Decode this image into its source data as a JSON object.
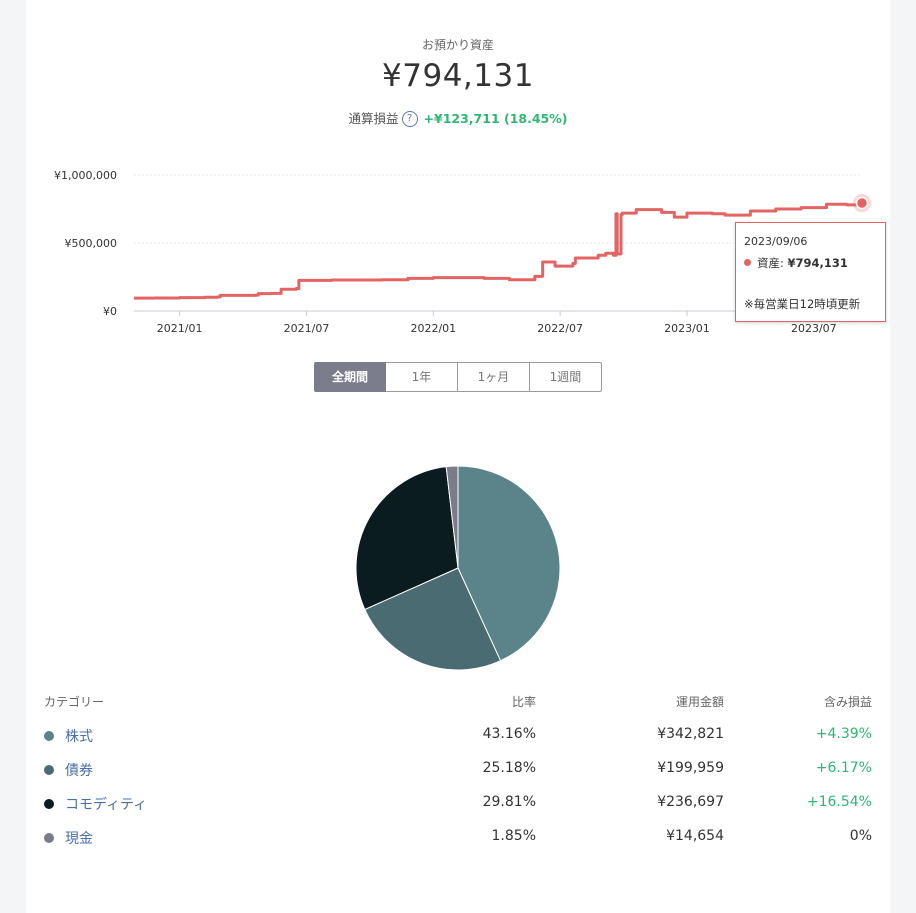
{
  "summary": {
    "assets_label": "お預かり資産",
    "assets_value": "¥794,131",
    "pl_label": "通算損益",
    "help_icon_text": "?",
    "pl_value": "+¥123,711 (18.45%)"
  },
  "tooltip": {
    "date": "2023/09/06",
    "series_label": "資産: ",
    "value": "¥794,131",
    "note": "※毎営業日12時頃更新"
  },
  "range_tabs": [
    "全期間",
    "1年",
    "1ヶ月",
    "1週間"
  ],
  "active_range": "全期間",
  "colors": {
    "line": "#e46464",
    "positive": "#2eb872",
    "stocks": "#5a8489",
    "bonds": "#4b6b72",
    "commodity": "#0b1c21",
    "cash": "#7b7c8a"
  },
  "chart_data": [
    {
      "type": "line",
      "title": "",
      "y_ticks": [
        "¥1,000,000",
        "¥500,000",
        "¥0"
      ],
      "y_tick_values": [
        1000000,
        500000,
        0
      ],
      "ylim": [
        0,
        1000000
      ],
      "x_ticks": [
        "2021/01",
        "2021/07",
        "2022/01",
        "2022/07",
        "2023/01",
        "2023/07"
      ],
      "x_tick_values": [
        2021.0,
        2021.5,
        2022.0,
        2022.5,
        2023.0,
        2023.5
      ],
      "xlim": [
        2020.82,
        2023.69
      ],
      "series": [
        {
          "name": "資産",
          "points": [
            [
              2020.82,
              95000
            ],
            [
              2020.9,
              96000
            ],
            [
              2021.0,
              98000
            ],
            [
              2021.1,
              101000
            ],
            [
              2021.15,
              104000
            ],
            [
              2021.16,
              115000
            ],
            [
              2021.3,
              117000
            ],
            [
              2021.31,
              128000
            ],
            [
              2021.36,
              130000
            ],
            [
              2021.4,
              160000
            ],
            [
              2021.46,
              165000
            ],
            [
              2021.47,
              225000
            ],
            [
              2021.6,
              228000
            ],
            [
              2021.8,
              230000
            ],
            [
              2021.9,
              240000
            ],
            [
              2022.0,
              245000
            ],
            [
              2022.2,
              240000
            ],
            [
              2022.3,
              230000
            ],
            [
              2022.4,
              255000
            ],
            [
              2022.43,
              258000
            ],
            [
              2022.431,
              360000
            ],
            [
              2022.48,
              330000
            ],
            [
              2022.55,
              350000
            ],
            [
              2022.56,
              390000
            ],
            [
              2022.65,
              410000
            ],
            [
              2022.68,
              425000
            ],
            [
              2022.71,
              410000
            ],
            [
              2022.72,
              715000
            ],
            [
              2022.725,
              420000
            ],
            [
              2022.735,
              420000
            ],
            [
              2022.74,
              710000
            ],
            [
              2022.745,
              720000
            ],
            [
              2022.8,
              745000
            ],
            [
              2022.9,
              725000
            ],
            [
              2022.95,
              690000
            ],
            [
              2023.0,
              720000
            ],
            [
              2023.1,
              715000
            ],
            [
              2023.15,
              705000
            ],
            [
              2023.25,
              735000
            ],
            [
              2023.35,
              750000
            ],
            [
              2023.45,
              760000
            ],
            [
              2023.55,
              785000
            ],
            [
              2023.63,
              780000
            ],
            [
              2023.69,
              794131
            ]
          ]
        }
      ]
    },
    {
      "type": "pie",
      "title": "",
      "categories": [
        "株式",
        "債券",
        "コモディティ",
        "現金"
      ],
      "values": [
        43.16,
        25.18,
        29.81,
        1.85
      ]
    }
  ],
  "table": {
    "headers": {
      "category": "カテゴリー",
      "ratio": "比率",
      "amount": "運用金額",
      "pl": "含み損益"
    },
    "rows": [
      {
        "name": "株式",
        "ratio": "43.16%",
        "amount": "¥342,821",
        "pl": "+4.39%",
        "color": "#5a8489",
        "positive": true
      },
      {
        "name": "債券",
        "ratio": "25.18%",
        "amount": "¥199,959",
        "pl": "+6.17%",
        "color": "#4b6b72",
        "positive": true
      },
      {
        "name": "コモディティ",
        "ratio": "29.81%",
        "amount": "¥236,697",
        "pl": "+16.54%",
        "color": "#0b1c21",
        "positive": true
      },
      {
        "name": "現金",
        "ratio": "1.85%",
        "amount": "¥14,654",
        "pl": "0%",
        "color": "#7b7c8a",
        "positive": false
      }
    ]
  }
}
